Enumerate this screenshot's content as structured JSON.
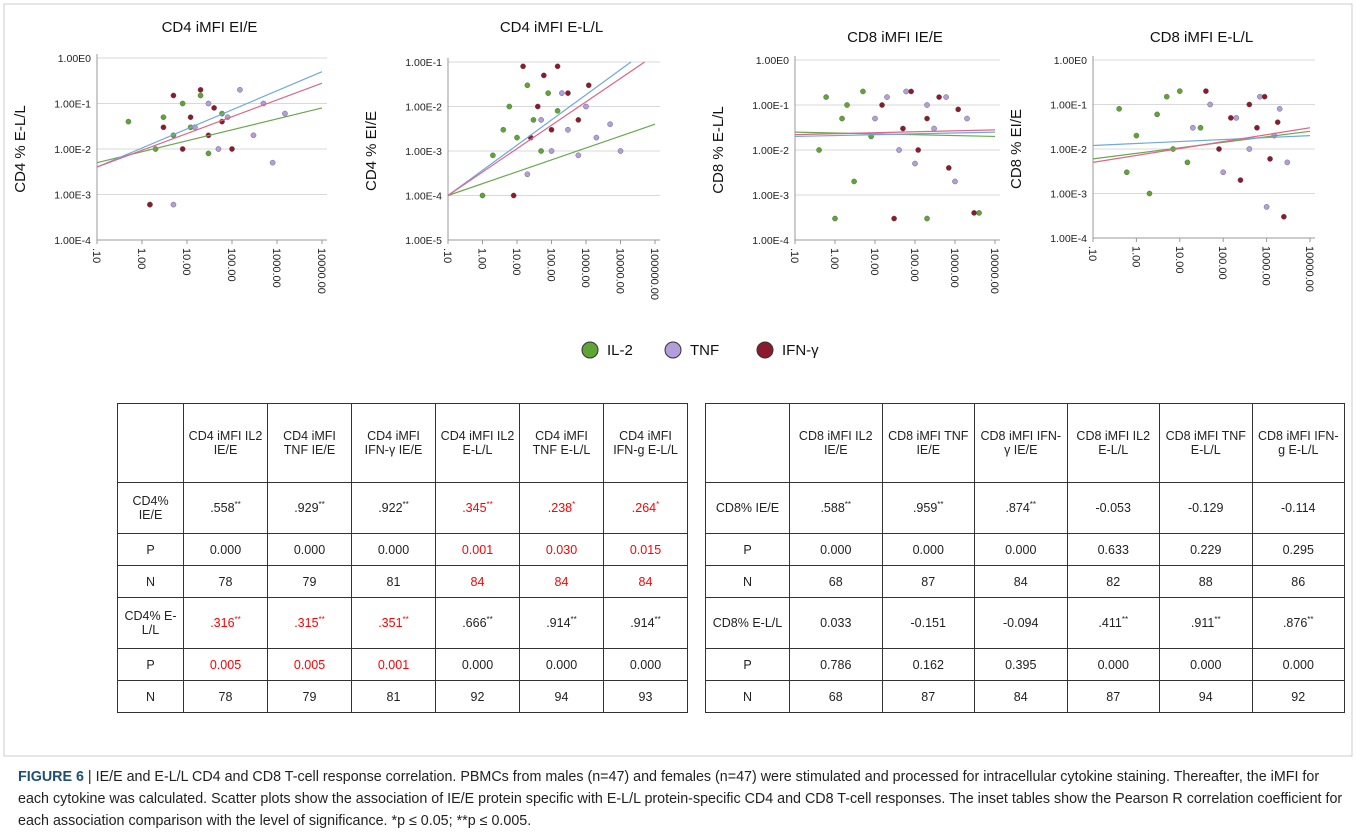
{
  "chart_data": [
    {
      "type": "scatter",
      "title": "CD4 iMFI EI/E",
      "y_label": "CD4 % E-L/L",
      "log_x": true,
      "log_y": true,
      "grid": true,
      "xlim": [
        0.1,
        10000
      ],
      "ylim": [
        0.0001,
        1
      ],
      "xticks": [
        {
          "value": 0.1,
          "label": ".10"
        },
        {
          "value": 1,
          "label": "1.00"
        },
        {
          "value": 10,
          "label": "10.00"
        },
        {
          "value": 100,
          "label": "100.00"
        },
        {
          "value": 1000,
          "label": "1000.00"
        },
        {
          "value": 10000,
          "label": "10000.00"
        }
      ],
      "yticks": [
        {
          "value": 1,
          "label": "1.00E0"
        },
        {
          "value": 0.1,
          "label": "1.00E-1"
        },
        {
          "value": 0.01,
          "label": "1.00E-2"
        },
        {
          "value": 0.001,
          "label": "1.00E-3"
        },
        {
          "value": 0.0001,
          "label": "1.00E-4"
        }
      ],
      "legend_position": "bottom",
      "series": [
        {
          "name": "IL-2",
          "color": "#5ea534",
          "line_color": "#6aa84f",
          "x": [
            0.5,
            1.5,
            2,
            3,
            5,
            8,
            12,
            20,
            30,
            60
          ],
          "values": [
            0.04,
            0.0006,
            0.01,
            0.05,
            0.02,
            0.1,
            0.03,
            0.15,
            0.008,
            0.06
          ],
          "fit": {
            "x": [
              0.1,
              10000
            ],
            "y": [
              0.005,
              0.08
            ]
          }
        },
        {
          "name": "TNF",
          "color": "#b39ddb",
          "line_color": "#6fa8dc",
          "x": [
            5,
            15,
            30,
            50,
            80,
            150,
            300,
            500,
            800,
            1500
          ],
          "values": [
            0.0006,
            0.03,
            0.1,
            0.01,
            0.05,
            0.2,
            0.02,
            0.1,
            0.005,
            0.06
          ],
          "fit": {
            "x": [
              0.1,
              10000
            ],
            "y": [
              0.004,
              0.5
            ]
          }
        },
        {
          "name": "IFN-γ",
          "color": "#8b1a2c",
          "line_color": "#e06688",
          "x": [
            1.5,
            3,
            5,
            8,
            12,
            20,
            30,
            40,
            60,
            100
          ],
          "values": [
            0.0006,
            0.03,
            0.15,
            0.01,
            0.05,
            0.2,
            0.02,
            0.08,
            0.04,
            0.01
          ],
          "fit": {
            "x": [
              0.1,
              10000
            ],
            "y": [
              0.004,
              0.28
            ]
          }
        }
      ]
    },
    {
      "type": "scatter",
      "title": "CD4 iMFI E-L/L",
      "y_label": "CD4 % EI/E",
      "log_x": true,
      "log_y": true,
      "grid": true,
      "xlim": [
        0.1,
        100000
      ],
      "ylim": [
        1e-05,
        0.1
      ],
      "xticks": [
        {
          "value": 0.1,
          "label": ".10"
        },
        {
          "value": 1,
          "label": "1.00"
        },
        {
          "value": 10,
          "label": "10.00"
        },
        {
          "value": 100,
          "label": "100.00"
        },
        {
          "value": 1000,
          "label": "1000.00"
        },
        {
          "value": 10000,
          "label": "10000.00"
        },
        {
          "value": 100000,
          "label": "100000.00"
        }
      ],
      "yticks": [
        {
          "value": 0.1,
          "label": "1.00E-1"
        },
        {
          "value": 0.01,
          "label": "1.00E-2"
        },
        {
          "value": 0.001,
          "label": "1.00E-3"
        },
        {
          "value": 0.0001,
          "label": "1.00E-4"
        },
        {
          "value": 1e-05,
          "label": "1.00E-5"
        }
      ],
      "series": [
        {
          "name": "IL-2",
          "color": "#5ea534",
          "line_color": "#6aa84f",
          "x": [
            1,
            2,
            4,
            6,
            10,
            20,
            30,
            50,
            80,
            150
          ],
          "values": [
            0.0001,
            0.0008,
            0.003,
            0.01,
            0.002,
            0.03,
            0.005,
            0.001,
            0.02,
            0.008
          ],
          "fit": {
            "x": [
              0.1,
              100000
            ],
            "y": [
              0.0001,
              0.004
            ]
          }
        },
        {
          "name": "TNF",
          "color": "#b39ddb",
          "line_color": "#6fa8dc",
          "x": [
            20,
            50,
            100,
            200,
            300,
            600,
            1000,
            2000,
            5000,
            10000
          ],
          "values": [
            0.0003,
            0.005,
            0.001,
            0.02,
            0.003,
            0.0008,
            0.01,
            0.002,
            0.004,
            0.001
          ],
          "fit": {
            "x": [
              0.1,
              20000
            ],
            "y": [
              0.0001,
              0.1
            ]
          }
        },
        {
          "name": "IFN-γ",
          "color": "#8b1a2c",
          "line_color": "#e06688",
          "x": [
            8,
            15,
            25,
            40,
            60,
            100,
            150,
            300,
            600,
            1200
          ],
          "values": [
            0.0001,
            0.08,
            0.002,
            0.01,
            0.05,
            0.003,
            0.08,
            0.02,
            0.005,
            0.03
          ],
          "fit": {
            "x": [
              0.1,
              50000
            ],
            "y": [
              0.0001,
              0.1
            ]
          }
        }
      ]
    },
    {
      "type": "scatter",
      "title": "CD8 iMFI IE/E",
      "y_label": "CD8 % E-L/L",
      "log_x": true,
      "log_y": true,
      "grid": true,
      "xlim": [
        0.1,
        10000
      ],
      "ylim": [
        0.0001,
        1
      ],
      "xticks": [
        {
          "value": 0.1,
          "label": ".10"
        },
        {
          "value": 1,
          "label": "1.00"
        },
        {
          "value": 10,
          "label": "10.00"
        },
        {
          "value": 100,
          "label": "100.00"
        },
        {
          "value": 1000,
          "label": "1000.00"
        },
        {
          "value": 10000,
          "label": "10000.00"
        }
      ],
      "yticks": [
        {
          "value": 1,
          "label": "1.00E0"
        },
        {
          "value": 0.1,
          "label": "1.00E-1"
        },
        {
          "value": 0.01,
          "label": "1.00E-2"
        },
        {
          "value": 0.001,
          "label": "1.00E-3"
        },
        {
          "value": 0.0001,
          "label": "1.00E-4"
        }
      ],
      "series": [
        {
          "name": "IL-2",
          "color": "#5ea534",
          "line_color": "#6aa84f",
          "x": [
            0.4,
            0.6,
            1,
            1.5,
            2,
            3,
            5,
            8,
            200,
            4000
          ],
          "values": [
            0.01,
            0.15,
            0.0003,
            0.05,
            0.1,
            0.002,
            0.2,
            0.02,
            0.0003,
            0.0004
          ],
          "fit": {
            "x": [
              0.1,
              10000
            ],
            "y": [
              0.025,
              0.02
            ]
          }
        },
        {
          "name": "TNF",
          "color": "#b39ddb",
          "line_color": "#6fa8dc",
          "x": [
            10,
            20,
            40,
            60,
            100,
            200,
            300,
            600,
            1000,
            2000
          ],
          "values": [
            0.05,
            0.15,
            0.01,
            0.2,
            0.005,
            0.1,
            0.03,
            0.15,
            0.002,
            0.05
          ],
          "fit": {
            "x": [
              0.1,
              10000
            ],
            "y": [
              0.02,
              0.025
            ]
          }
        },
        {
          "name": "IFN-γ",
          "color": "#8b1a2c",
          "line_color": "#e06688",
          "x": [
            15,
            30,
            50,
            80,
            120,
            200,
            400,
            700,
            1200,
            3000
          ],
          "values": [
            0.1,
            0.0003,
            0.03,
            0.2,
            0.01,
            0.05,
            0.15,
            0.004,
            0.08,
            0.0004
          ],
          "fit": {
            "x": [
              0.1,
              10000
            ],
            "y": [
              0.022,
              0.028
            ]
          }
        }
      ]
    },
    {
      "type": "scatter",
      "title": "CD8 iMFI E-L/L",
      "y_label": "CD8 % EI/E",
      "log_x": true,
      "log_y": true,
      "grid": true,
      "xlim": [
        0.1,
        10000
      ],
      "ylim": [
        0.0001,
        1
      ],
      "xticks": [
        {
          "value": 0.1,
          "label": ".10"
        },
        {
          "value": 1,
          "label": "1.00"
        },
        {
          "value": 10,
          "label": "10.00"
        },
        {
          "value": 100,
          "label": "100.00"
        },
        {
          "value": 1000,
          "label": "1000.00"
        },
        {
          "value": 10000,
          "label": "10000.00"
        }
      ],
      "yticks": [
        {
          "value": 1,
          "label": "1.00E0"
        },
        {
          "value": 0.1,
          "label": "1.00E-1"
        },
        {
          "value": 0.01,
          "label": "1.00E-2"
        },
        {
          "value": 0.001,
          "label": "1.00E-3"
        },
        {
          "value": 0.0001,
          "label": "1.00E-4"
        }
      ],
      "series": [
        {
          "name": "IL-2",
          "color": "#5ea534",
          "line_color": "#6aa84f",
          "x": [
            0.4,
            0.6,
            1,
            2,
            3,
            5,
            7,
            10,
            15,
            30
          ],
          "values": [
            0.08,
            0.003,
            0.02,
            0.001,
            0.06,
            0.15,
            0.01,
            0.2,
            0.005,
            0.03
          ],
          "fit": {
            "x": [
              0.1,
              10000
            ],
            "y": [
              0.006,
              0.025
            ]
          }
        },
        {
          "name": "TNF",
          "color": "#b39ddb",
          "line_color": "#6fa8dc",
          "x": [
            20,
            50,
            100,
            200,
            400,
            700,
            1000,
            1500,
            2000,
            3000
          ],
          "values": [
            0.03,
            0.1,
            0.003,
            0.05,
            0.01,
            0.15,
            0.0005,
            0.02,
            0.08,
            0.005
          ],
          "fit": {
            "x": [
              0.1,
              10000
            ],
            "y": [
              0.012,
              0.02
            ]
          }
        },
        {
          "name": "IFN-γ",
          "color": "#8b1a2c",
          "line_color": "#e06688",
          "x": [
            40,
            80,
            150,
            250,
            400,
            600,
            900,
            1200,
            1800,
            2500
          ],
          "values": [
            0.2,
            0.01,
            0.05,
            0.002,
            0.1,
            0.03,
            0.15,
            0.006,
            0.04,
            0.0003
          ],
          "fit": {
            "x": [
              0.1,
              10000
            ],
            "y": [
              0.005,
              0.03
            ]
          }
        }
      ]
    }
  ],
  "tables": [
    {
      "header": [
        null,
        "CD4 iMFI IL2 IE/E",
        "CD4 iMFI TNF IE/E",
        "CD4 iMFI IFN-γ IE/E",
        "CD4 iMFI IL2 E-L/L",
        "CD4 iMFI TNF E-L/L",
        "CD4 iMFI IFN-g E-L/L"
      ],
      "rows": [
        [
          "CD4% IE/E",
          {
            "text": ".558",
            "sig": "**"
          },
          {
            "text": ".929",
            "sig": "**"
          },
          {
            "text": ".922",
            "sig": "**"
          },
          {
            "text": ".345",
            "sig": "**",
            "color": "red"
          },
          {
            "text": ".238",
            "sig": "*",
            "color": "red"
          },
          {
            "text": ".264",
            "sig": "*",
            "color": "red"
          }
        ],
        [
          "P",
          "0.000",
          "0.000",
          "0.000",
          {
            "text": "0.001",
            "color": "red"
          },
          {
            "text": "0.030",
            "color": "red"
          },
          {
            "text": "0.015",
            "color": "red"
          }
        ],
        [
          "N",
          "78",
          "79",
          "81",
          {
            "text": "84",
            "color": "red"
          },
          {
            "text": "84",
            "color": "red"
          },
          {
            "text": "84",
            "color": "red"
          }
        ],
        [
          "CD4% E-L/L",
          {
            "text": ".316",
            "sig": "**",
            "color": "red"
          },
          {
            "text": ".315",
            "sig": "**",
            "color": "red"
          },
          {
            "text": ".351",
            "sig": "**",
            "color": "red"
          },
          {
            "text": ".666",
            "sig": "**"
          },
          {
            "text": ".914",
            "sig": "**"
          },
          {
            "text": ".914",
            "sig": "**"
          }
        ],
        [
          "P",
          {
            "text": "0.005",
            "color": "red"
          },
          {
            "text": "0.005",
            "color": "red"
          },
          {
            "text": "0.001",
            "color": "red"
          },
          "0.000",
          "0.000",
          "0.000"
        ],
        [
          "N",
          "78",
          "79",
          "81",
          "92",
          "94",
          "93"
        ]
      ]
    },
    {
      "header": [
        null,
        "CD8 iMFI IL2 IE/E",
        "CD8 iMFI TNF IE/E",
        "CD8 iMFI IFN-γ IE/E",
        "CD8 iMFI IL2 E-L/L",
        "CD8 iMFI TNF E-L/L",
        "CD8 iMFI IFN-g E-L/L"
      ],
      "rows": [
        [
          "CD8% IE/E",
          {
            "text": ".588",
            "sig": "**"
          },
          {
            "text": ".959",
            "sig": "**"
          },
          {
            "text": ".874",
            "sig": "**"
          },
          "-0.053",
          "-0.129",
          "-0.114"
        ],
        [
          "P",
          "0.000",
          "0.000",
          "0.000",
          "0.633",
          "0.229",
          "0.295"
        ],
        [
          "N",
          "68",
          "87",
          "84",
          "82",
          "88",
          "86"
        ],
        [
          "CD8% E-L/L",
          "0.033",
          "-0.151",
          "-0.094",
          {
            "text": ".411",
            "sig": "**"
          },
          {
            "text": ".911",
            "sig": "**"
          },
          {
            "text": ".876",
            "sig": "**"
          }
        ],
        [
          "P",
          "0.786",
          "0.162",
          "0.395",
          "0.000",
          "0.000",
          "0.000"
        ],
        [
          "N",
          "68",
          "87",
          "84",
          "87",
          "94",
          "92"
        ]
      ]
    }
  ],
  "caption": {
    "label": "FIGURE 6",
    "text": "| IE/E and E-L/L CD4 and CD8 T-cell response correlation. PBMCs from males (n=47) and females (n=47) were stimulated and processed for intracellular cytokine staining. Thereafter, the iMFI for each cytokine was calculated. Scatter plots show the association of IE/E protein specific with E-L/L protein-specific CD4 and CD8 T-cell responses. The inset tables show the Pearson R correlation coefficient for each association comparison with the level of significance. *p ≤ 0.05; **p ≤ 0.005."
  }
}
